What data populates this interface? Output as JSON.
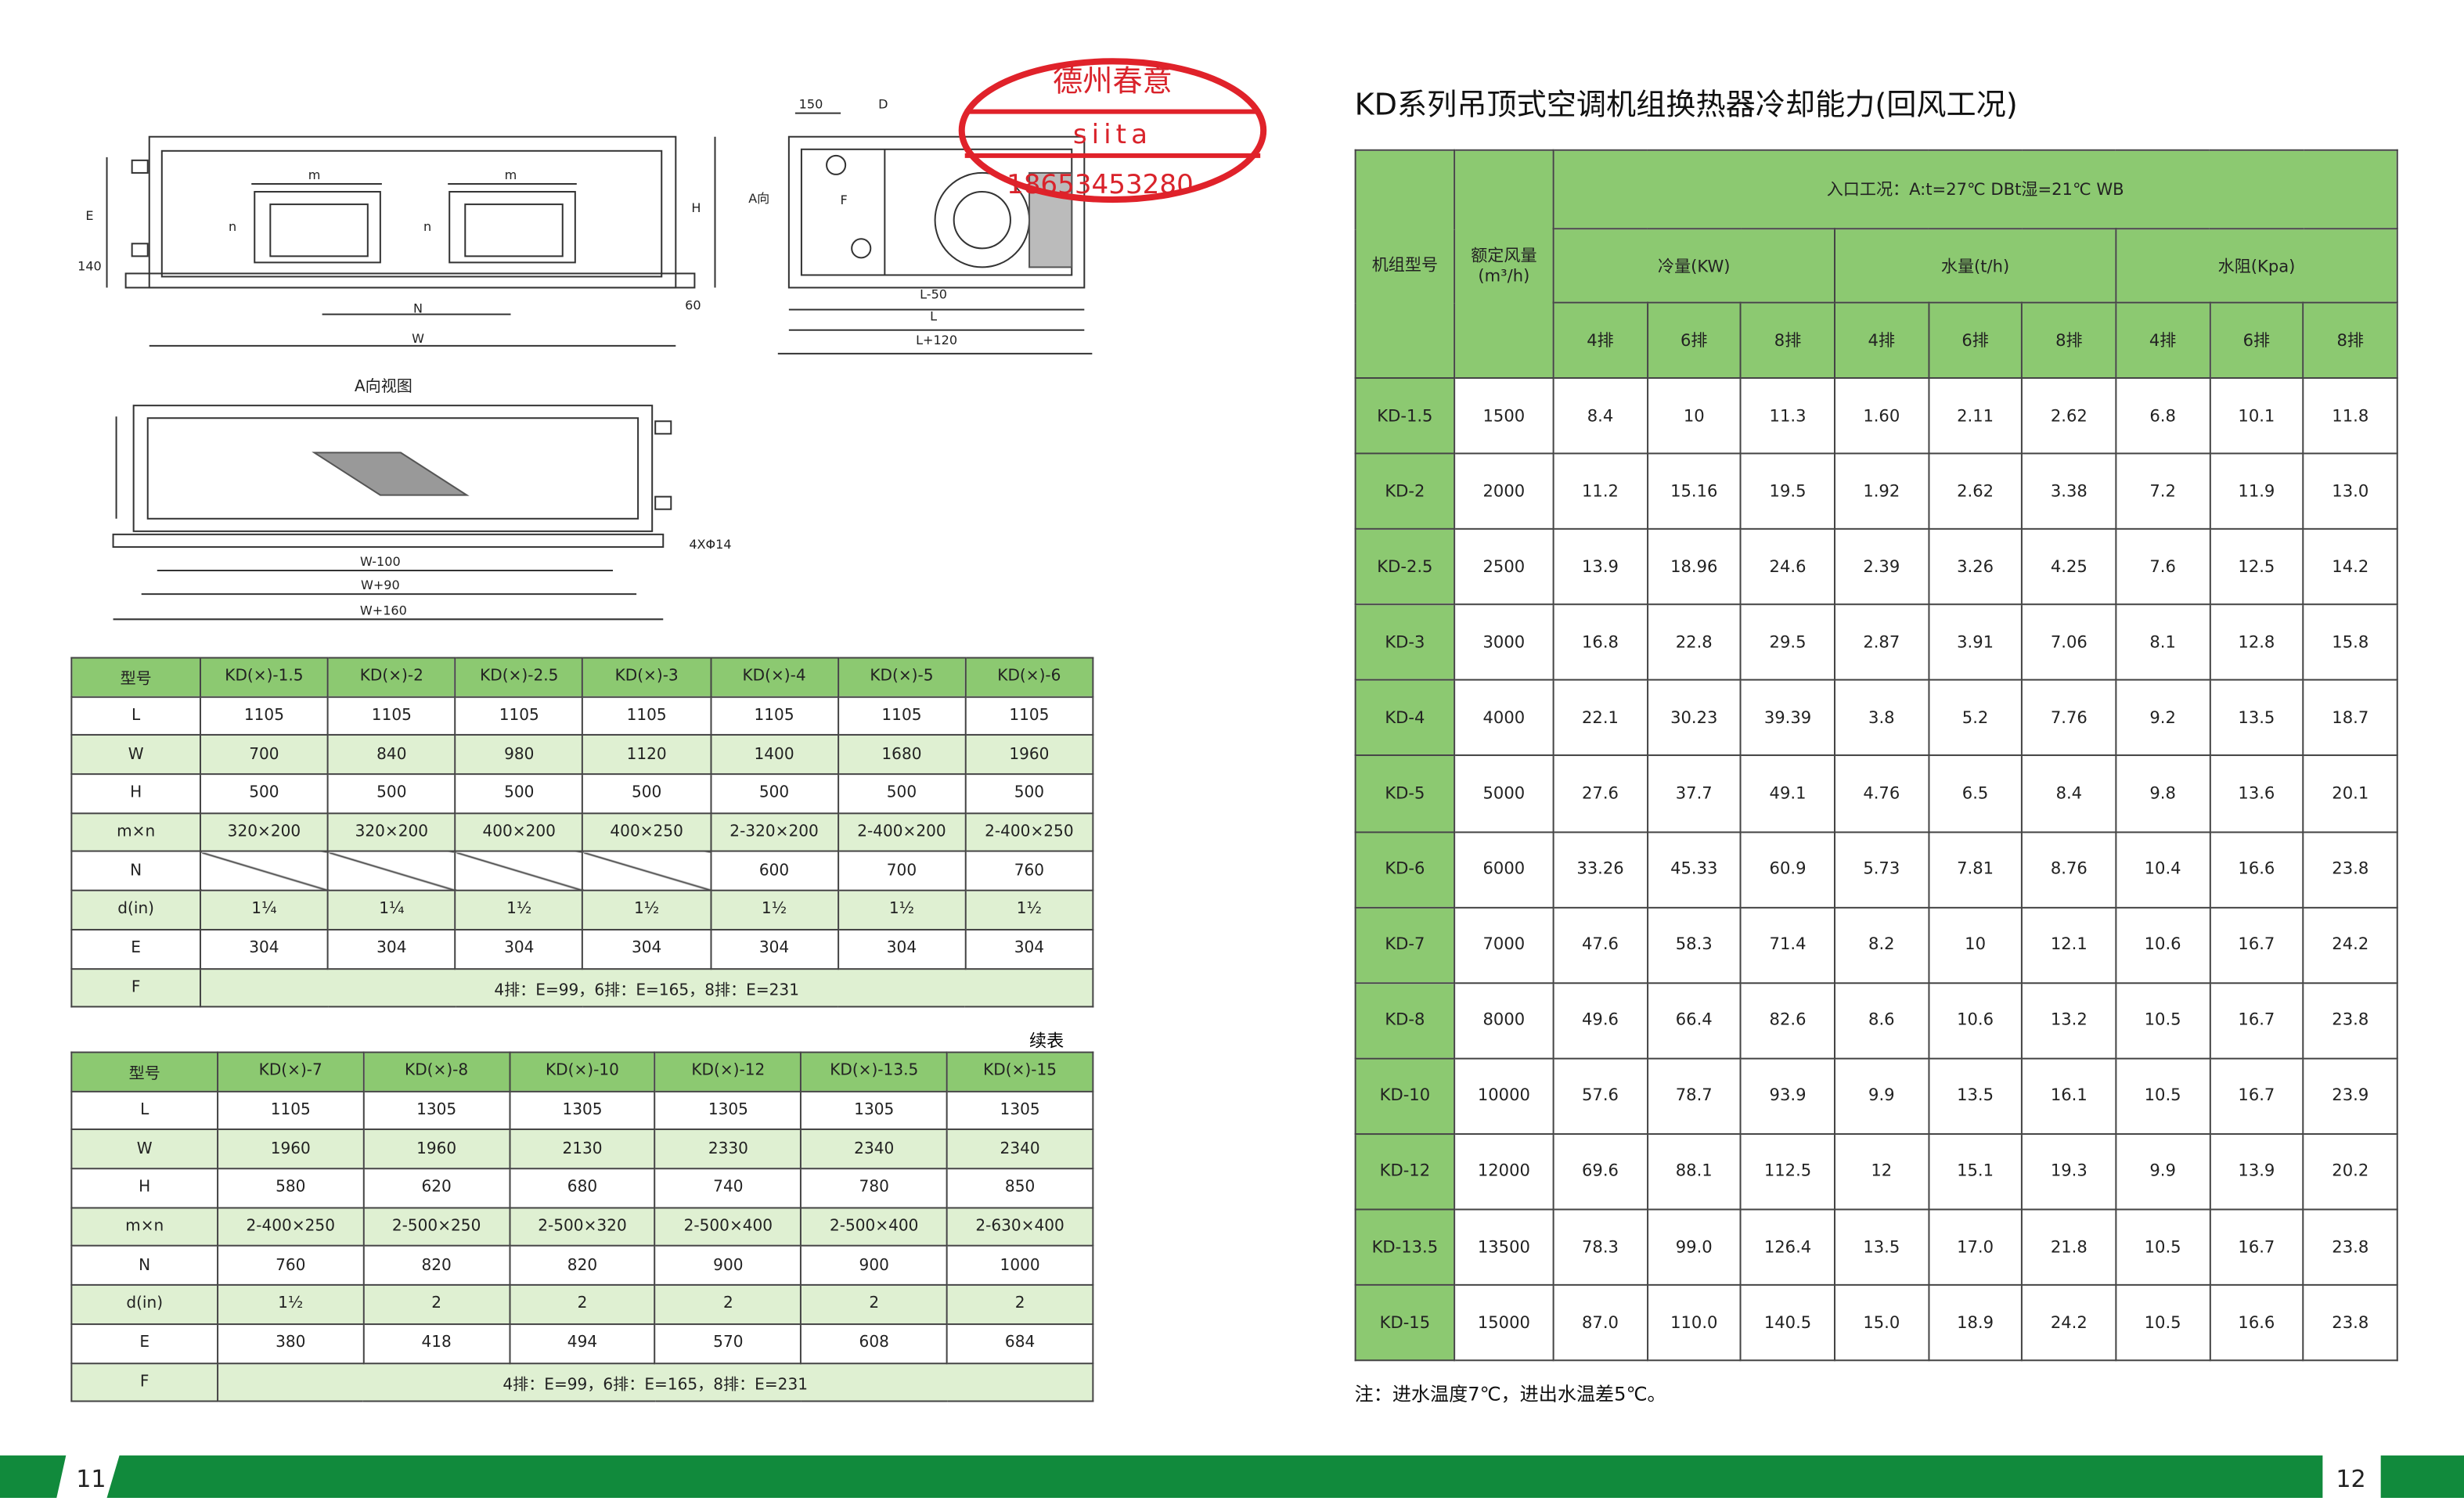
{
  "stamp": {
    "name": "德州春意",
    "brand": "siita",
    "phone": "18653453280"
  },
  "drawing": {
    "labels": [
      "m",
      "m",
      "n",
      "n",
      "E",
      "140",
      "H",
      "N",
      "W",
      "60",
      "150",
      "D",
      "A向",
      "F",
      "L-50",
      "L",
      "L+120",
      "A向视图",
      "4XΦ14",
      "W-100",
      "W+90",
      "W+160"
    ]
  },
  "size_table_1": {
    "header": [
      "型号",
      "KD(×)-1.5",
      "KD(×)-2",
      "KD(×)-2.5",
      "KD(×)-3",
      "KD(×)-4",
      "KD(×)-5",
      "KD(×)-6"
    ],
    "rows": [
      [
        "L",
        "1105",
        "1105",
        "1105",
        "1105",
        "1105",
        "1105",
        "1105"
      ],
      [
        "W",
        "700",
        "840",
        "980",
        "1120",
        "1400",
        "1680",
        "1960"
      ],
      [
        "H",
        "500",
        "500",
        "500",
        "500",
        "500",
        "500",
        "500"
      ],
      [
        "m×n",
        "320×200",
        "320×200",
        "400×200",
        "400×250",
        "2-320×200",
        "2-400×200",
        "2-400×250"
      ],
      [
        "N",
        null,
        null,
        null,
        null,
        "600",
        "700",
        "760"
      ],
      [
        "d(in)",
        "1¼",
        "1¼",
        "1½",
        "1½",
        "1½",
        "1½",
        "1½"
      ],
      [
        "E",
        "304",
        "304",
        "304",
        "304",
        "304",
        "304",
        "304"
      ]
    ],
    "f_row": [
      "F",
      "4排：E=99，6排：E=165，8排：E=231"
    ]
  },
  "continued_label": "续表",
  "size_table_2": {
    "header": [
      "型号",
      "KD(×)-7",
      "KD(×)-8",
      "KD(×)-10",
      "KD(×)-12",
      "KD(×)-13.5",
      "KD(×)-15"
    ],
    "rows": [
      [
        "L",
        "1105",
        "1305",
        "1305",
        "1305",
        "1305",
        "1305"
      ],
      [
        "W",
        "1960",
        "1960",
        "2130",
        "2330",
        "2340",
        "2340"
      ],
      [
        "H",
        "580",
        "620",
        "680",
        "740",
        "780",
        "850"
      ],
      [
        "m×n",
        "2-400×250",
        "2-500×250",
        "2-500×320",
        "2-500×400",
        "2-500×400",
        "2-630×400"
      ],
      [
        "N",
        "760",
        "820",
        "820",
        "900",
        "900",
        "1000"
      ],
      [
        "d(in)",
        "1½",
        "2",
        "2",
        "2",
        "2",
        "2"
      ],
      [
        "E",
        "380",
        "418",
        "494",
        "570",
        "608",
        "684"
      ]
    ],
    "f_row": [
      "F",
      "4排：E=99，6排：E=165，8排：E=231"
    ]
  },
  "capacity_table": {
    "title": "KD系列吊顶式空调机组换热器冷却能力(回风工况)",
    "model_header": "机组型号",
    "airflow_header": "额定风量(m³/h)",
    "condition": "入口工况：A:t=27℃  DBt湿=21℃    WB",
    "groups": [
      "冷量(KW)",
      "水量(t/h)",
      "水阻(Kpa)"
    ],
    "sub_headers": [
      "4排",
      "6排",
      "8排",
      "4排",
      "6排",
      "8排",
      "4排",
      "6排",
      "8排"
    ],
    "rows": [
      [
        "KD-1.5",
        "1500",
        "8.4",
        "10",
        "11.3",
        "1.60",
        "2.11",
        "2.62",
        "6.8",
        "10.1",
        "11.8"
      ],
      [
        "KD-2",
        "2000",
        "11.2",
        "15.16",
        "19.5",
        "1.92",
        "2.62",
        "3.38",
        "7.2",
        "11.9",
        "13.0"
      ],
      [
        "KD-2.5",
        "2500",
        "13.9",
        "18.96",
        "24.6",
        "2.39",
        "3.26",
        "4.25",
        "7.6",
        "12.5",
        "14.2"
      ],
      [
        "KD-3",
        "3000",
        "16.8",
        "22.8",
        "29.5",
        "2.87",
        "3.91",
        "7.06",
        "8.1",
        "12.8",
        "15.8"
      ],
      [
        "KD-4",
        "4000",
        "22.1",
        "30.23",
        "39.39",
        "3.8",
        "5.2",
        "7.76",
        "9.2",
        "13.5",
        "18.7"
      ],
      [
        "KD-5",
        "5000",
        "27.6",
        "37.7",
        "49.1",
        "4.76",
        "6.5",
        "8.4",
        "9.8",
        "13.6",
        "20.1"
      ],
      [
        "KD-6",
        "6000",
        "33.26",
        "45.33",
        "60.9",
        "5.73",
        "7.81",
        "8.76",
        "10.4",
        "16.6",
        "23.8"
      ],
      [
        "KD-7",
        "7000",
        "47.6",
        "58.3",
        "71.4",
        "8.2",
        "10",
        "12.1",
        "10.6",
        "16.7",
        "24.2"
      ],
      [
        "KD-8",
        "8000",
        "49.6",
        "66.4",
        "82.6",
        "8.6",
        "10.6",
        "13.2",
        "10.5",
        "16.7",
        "23.8"
      ],
      [
        "KD-10",
        "10000",
        "57.6",
        "78.7",
        "93.9",
        "9.9",
        "13.5",
        "16.1",
        "10.5",
        "16.7",
        "23.9"
      ],
      [
        "KD-12",
        "12000",
        "69.6",
        "88.1",
        "112.5",
        "12",
        "15.1",
        "19.3",
        "9.9",
        "13.9",
        "20.2"
      ],
      [
        "KD-13.5",
        "13500",
        "78.3",
        "99.0",
        "126.4",
        "13.5",
        "17.0",
        "21.8",
        "10.5",
        "16.7",
        "23.8"
      ],
      [
        "KD-15",
        "15000",
        "87.0",
        "110.0",
        "140.5",
        "15.0",
        "18.9",
        "24.2",
        "10.5",
        "16.6",
        "23.8"
      ]
    ]
  },
  "note": "注：进水温度7℃，进出水温差5℃。",
  "footer": {
    "left_page": "11",
    "right_page": "12"
  }
}
